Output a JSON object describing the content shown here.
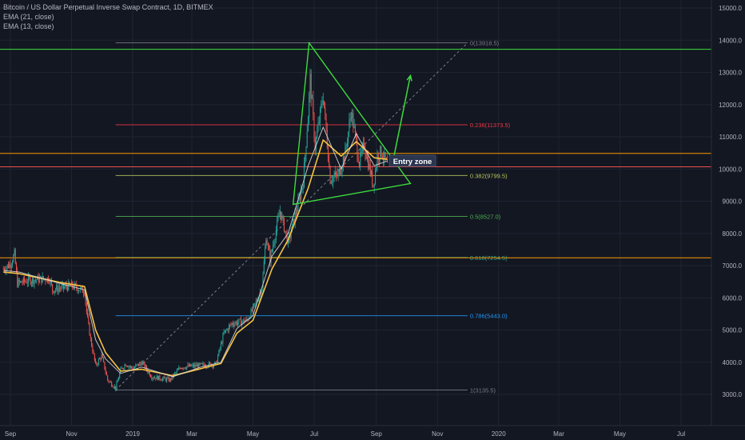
{
  "chart_title": "Bitcoin / US Dollar Perpetual Inverse Swap Contract, 1D, BITMEX",
  "indicators": [
    "EMA (21, close)",
    "EMA (13, close)"
  ],
  "colors": {
    "background": "#131722",
    "grid": "#1f2433",
    "candle_up": "#26a69a",
    "candle_down": "#ef5350",
    "ema21": "#f5c242",
    "ema13": "#e0e0e0",
    "trendline": "#3ddc3d",
    "fib_dash": "#7b7f8a"
  },
  "chart_data": {
    "type": "candlestick",
    "title": "Bitcoin / US Dollar Perpetual Inverse Swap Contract, 1D, BITMEX",
    "y_ticks": [
      3000,
      4000,
      5000,
      6000,
      7000,
      8000,
      9000,
      10000,
      11000,
      12000,
      13000,
      14000,
      15000
    ],
    "y_tick_labels": [
      "3000.0",
      "4000.0",
      "5000.0",
      "6000.0",
      "7000.0",
      "8000.0",
      "9000.0",
      "10000.0",
      "11000.0",
      "12000.0",
      "13000.0",
      "14000.0",
      "15000.0"
    ],
    "ylim": [
      2600,
      15400
    ],
    "x_ticks": [
      "Sep",
      "Nov",
      "2019",
      "Mar",
      "May",
      "Jul",
      "Sep",
      "Nov",
      "2020",
      "Mar",
      "May",
      "Jul"
    ],
    "x_tick_dates": [
      "2018-09-01",
      "2018-11-01",
      "2019-01-01",
      "2019-03-01",
      "2019-05-01",
      "2019-07-01",
      "2019-09-01",
      "2019-11-01",
      "2020-01-01",
      "2020-03-01",
      "2020-05-01",
      "2020-07-01"
    ],
    "price_path": [
      [
        "2018-08-25",
        6900
      ],
      [
        "2018-09-01",
        7050
      ],
      [
        "2018-09-05",
        7350
      ],
      [
        "2018-09-08",
        6450
      ],
      [
        "2018-09-20",
        6550
      ],
      [
        "2018-10-10",
        6600
      ],
      [
        "2018-10-13",
        6250
      ],
      [
        "2018-11-01",
        6380
      ],
      [
        "2018-11-14",
        6200
      ],
      [
        "2018-11-16",
        5550
      ],
      [
        "2018-11-20",
        4700
      ],
      [
        "2018-11-25",
        3900
      ],
      [
        "2018-12-01",
        4200
      ],
      [
        "2018-12-07",
        3450
      ],
      [
        "2018-12-15",
        3200
      ],
      [
        "2018-12-20",
        3750
      ],
      [
        "2018-12-25",
        3950
      ],
      [
        "2019-01-01",
        3800
      ],
      [
        "2019-01-10",
        4000
      ],
      [
        "2019-01-20",
        3550
      ],
      [
        "2019-02-07",
        3450
      ],
      [
        "2019-02-18",
        3850
      ],
      [
        "2019-03-10",
        3900
      ],
      [
        "2019-03-25",
        3950
      ],
      [
        "2019-04-02",
        4900
      ],
      [
        "2019-04-10",
        5200
      ],
      [
        "2019-04-25",
        5300
      ],
      [
        "2019-05-01",
        5650
      ],
      [
        "2019-05-10",
        6300
      ],
      [
        "2019-05-14",
        7900
      ],
      [
        "2019-05-18",
        7200
      ],
      [
        "2019-05-28",
        8700
      ],
      [
        "2019-06-05",
        7700
      ],
      [
        "2019-06-15",
        8900
      ],
      [
        "2019-06-20",
        9600
      ],
      [
        "2019-06-25",
        11700
      ],
      [
        "2019-06-27",
        12800
      ],
      [
        "2019-07-02",
        10700
      ],
      [
        "2019-07-10",
        12300
      ],
      [
        "2019-07-17",
        9700
      ],
      [
        "2019-07-25",
        9800
      ],
      [
        "2019-08-01",
        10500
      ],
      [
        "2019-08-07",
        11800
      ],
      [
        "2019-08-15",
        10200
      ],
      [
        "2019-08-20",
        10750
      ],
      [
        "2019-08-29",
        9500
      ],
      [
        "2019-09-02",
        10400
      ],
      [
        "2019-09-06",
        10550
      ],
      [
        "2019-09-12",
        10100
      ]
    ],
    "ema21_path": [
      [
        "2018-08-25",
        6800
      ],
      [
        "2018-09-10",
        6750
      ],
      [
        "2018-10-20",
        6480
      ],
      [
        "2018-11-14",
        6350
      ],
      [
        "2018-11-25",
        5000
      ],
      [
        "2018-12-05",
        4300
      ],
      [
        "2018-12-20",
        3720
      ],
      [
        "2019-01-10",
        3780
      ],
      [
        "2019-02-10",
        3580
      ],
      [
        "2019-03-10",
        3800
      ],
      [
        "2019-03-30",
        3960
      ],
      [
        "2019-04-15",
        4900
      ],
      [
        "2019-05-01",
        5300
      ],
      [
        "2019-05-20",
        6900
      ],
      [
        "2019-06-05",
        7800
      ],
      [
        "2019-06-25",
        9400
      ],
      [
        "2019-07-10",
        10900
      ],
      [
        "2019-07-28",
        10400
      ],
      [
        "2019-08-12",
        10850
      ],
      [
        "2019-08-30",
        10350
      ],
      [
        "2019-09-12",
        10300
      ]
    ],
    "ema13_path": [
      [
        "2018-08-25",
        6850
      ],
      [
        "2018-09-10",
        6800
      ],
      [
        "2018-10-20",
        6450
      ],
      [
        "2018-11-14",
        6250
      ],
      [
        "2018-11-25",
        4700
      ],
      [
        "2018-12-05",
        4100
      ],
      [
        "2018-12-20",
        3650
      ],
      [
        "2019-01-10",
        3850
      ],
      [
        "2019-02-10",
        3550
      ],
      [
        "2019-03-10",
        3850
      ],
      [
        "2019-03-30",
        4000
      ],
      [
        "2019-04-15",
        5050
      ],
      [
        "2019-05-01",
        5450
      ],
      [
        "2019-05-20",
        7300
      ],
      [
        "2019-06-05",
        8000
      ],
      [
        "2019-06-25",
        10100
      ],
      [
        "2019-07-10",
        11300
      ],
      [
        "2019-07-28",
        10000
      ],
      [
        "2019-08-12",
        11100
      ],
      [
        "2019-08-30",
        10100
      ],
      [
        "2019-09-12",
        10250
      ]
    ],
    "fib_levels": [
      {
        "label": "0(13918.5)",
        "price": 13918.5,
        "color": "#787b86"
      },
      {
        "label": "0.236(11373.5)",
        "price": 11373.5,
        "color": "#f23645"
      },
      {
        "label": "0.382(9799.5)",
        "price": 9799.5,
        "color": "#b7c65c"
      },
      {
        "label": "0.5(8527.0)",
        "price": 8527.0,
        "color": "#4caf50"
      },
      {
        "label": "0.618(7254.5)",
        "price": 7254.5,
        "color": "#26a69a"
      },
      {
        "label": "0.786(5443.0)",
        "price": 5443.0,
        "color": "#2196f3"
      },
      {
        "label": "1(3135.5)",
        "price": 3135.5,
        "color": "#787b86"
      }
    ],
    "fib_start": "2018-12-15",
    "fib_end": "2019-12-01",
    "fib_diagonal": [
      [
        "2018-12-15",
        3135.5
      ],
      [
        "2019-12-01",
        13918.5
      ]
    ],
    "horizontal_lines": [
      {
        "price": 13716.5,
        "label": "13716.5",
        "color": "#3ddc3d",
        "text_color": "#131722"
      },
      {
        "price": 10484.5,
        "label": "10484.5",
        "color": "#ff9800",
        "text_color": "#131722"
      },
      {
        "price": 10068.5,
        "label": "10068.5",
        "color": "#ef5350",
        "text_color": "#ffffff"
      },
      {
        "price": 7243.0,
        "label": "7243.0",
        "color": "#ff9800",
        "text_color": "#131722"
      }
    ],
    "triangle": [
      [
        "2019-06-26",
        13918
      ],
      [
        "2019-10-05",
        9550
      ],
      [
        "2019-06-10",
        8900
      ]
    ],
    "arrow": {
      "from": [
        "2019-09-18",
        10300
      ],
      "to": [
        "2019-10-05",
        12900
      ]
    },
    "annotation": {
      "text": "Entry zone",
      "date": "2019-09-14",
      "price": 10230
    }
  }
}
